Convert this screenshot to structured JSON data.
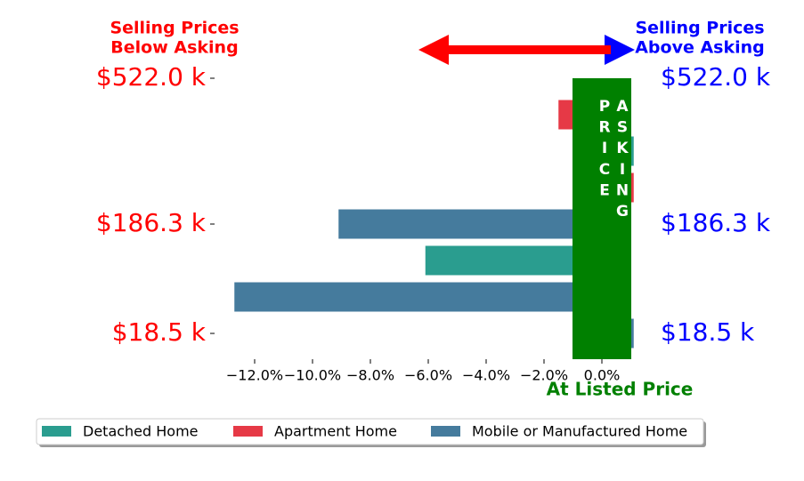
{
  "chart_data": {
    "type": "barh",
    "categories": [
      "$522.0 k",
      null,
      null,
      null,
      "$186.3 k",
      null,
      null,
      "$18.5 k"
    ],
    "series": [
      {
        "name": "Detached Home",
        "color": "#2a9d8f",
        "values": [
          null,
          null,
          1.1,
          null,
          null,
          -6.1,
          null,
          null
        ]
      },
      {
        "name": "Apartment Home",
        "color": "#e63946",
        "values": [
          null,
          -1.5,
          null,
          1.1,
          null,
          null,
          null,
          null
        ]
      },
      {
        "name": "Mobile or Manufactured Home",
        "color": "#457b9d",
        "values": [
          null,
          null,
          null,
          null,
          -9.1,
          null,
          -12.7,
          1.1
        ]
      }
    ],
    "xlim": [
      -13.6,
      1.2
    ],
    "xticks": [
      {
        "value": -12,
        "label": "−12.0%"
      },
      {
        "value": -10,
        "label": "−10.0%"
      },
      {
        "value": -8,
        "label": "−8.0%"
      },
      {
        "value": -6,
        "label": "−6.0%"
      },
      {
        "value": -4,
        "label": "−4.0%"
      },
      {
        "value": -2,
        "label": "−2.0%"
      },
      {
        "value": 0,
        "label": "0.0%"
      }
    ],
    "annotations": {
      "below": [
        "Selling Prices",
        "Below Asking"
      ],
      "above": [
        "Selling Prices",
        "Above Asking"
      ],
      "band": "ASKING PRICE",
      "listed": "At Listed Price"
    },
    "legend": "bottom"
  }
}
